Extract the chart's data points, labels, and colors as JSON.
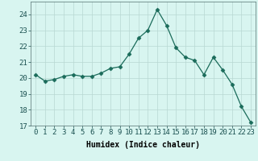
{
  "x": [
    0,
    1,
    2,
    3,
    4,
    5,
    6,
    7,
    8,
    9,
    10,
    11,
    12,
    13,
    14,
    15,
    16,
    17,
    18,
    19,
    20,
    21,
    22,
    23
  ],
  "y": [
    20.2,
    19.8,
    19.9,
    20.1,
    20.2,
    20.1,
    20.1,
    20.3,
    20.6,
    20.7,
    21.5,
    22.5,
    23.0,
    24.3,
    23.3,
    21.9,
    21.3,
    21.1,
    20.2,
    21.3,
    20.5,
    19.6,
    18.2,
    17.2
  ],
  "xlabel": "Humidex (Indice chaleur)",
  "xlim": [
    -0.5,
    23.5
  ],
  "ylim": [
    17,
    24.8
  ],
  "yticks": [
    17,
    18,
    19,
    20,
    21,
    22,
    23,
    24
  ],
  "xticks": [
    0,
    1,
    2,
    3,
    4,
    5,
    6,
    7,
    8,
    9,
    10,
    11,
    12,
    13,
    14,
    15,
    16,
    17,
    18,
    19,
    20,
    21,
    22,
    23
  ],
  "line_color": "#1a6b5a",
  "marker": "D",
  "marker_size": 2.5,
  "bg_color": "#d8f5f0",
  "grid_color": "#b8d8d2",
  "label_fontsize": 7,
  "tick_fontsize": 6.5
}
